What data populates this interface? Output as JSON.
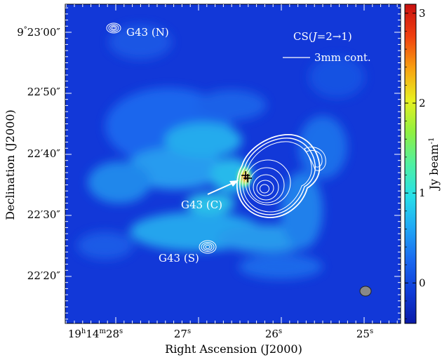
{
  "chart_data": {
    "type": "heatmap",
    "title": "",
    "xlabel": "Right Ascension (J2000)",
    "ylabel": "Declination (J2000)",
    "x_ticks": [
      {
        "main": "19",
        "sup1": "h",
        "mid": "14",
        "sup2": "m",
        "end": "28",
        "sup3": "s"
      },
      {
        "main": "27",
        "sup1": "s"
      },
      {
        "main": "26",
        "sup1": "s"
      },
      {
        "main": "25",
        "sup1": "s"
      }
    ],
    "y_ticks": [
      {
        "pre": "9",
        "deg": "°",
        "min": "23",
        "mark": "′00″"
      },
      {
        "min": "22",
        "mark": "′50″"
      },
      {
        "min": "22",
        "mark": "′40″"
      },
      {
        "min": "22",
        "mark": "′30″"
      },
      {
        "min": "22",
        "mark": "′20″"
      }
    ],
    "colorbar": {
      "label": "Jy beam",
      "label_sup": "-1",
      "range": [
        -0.45,
        3.1
      ],
      "ticks": [
        0,
        1,
        2,
        3
      ],
      "colors": [
        "#0a1aa8",
        "#0f3cd8",
        "#1a6af0",
        "#20a8f5",
        "#28e0e8",
        "#50f0a0",
        "#90f040",
        "#e8f020",
        "#f8a010",
        "#f04010",
        "#c81010"
      ]
    },
    "legend": {
      "species": "CS(",
      "j": "J",
      "transition": "=2→1)",
      "contour_label": "3mm cont."
    },
    "sources": [
      {
        "label": "G43 (N)"
      },
      {
        "label": "G43 (C)"
      },
      {
        "label": "G43 (S)"
      }
    ],
    "background_color": "#1238d8",
    "contour_color": "#ffffff",
    "marker_color": "#000000"
  }
}
